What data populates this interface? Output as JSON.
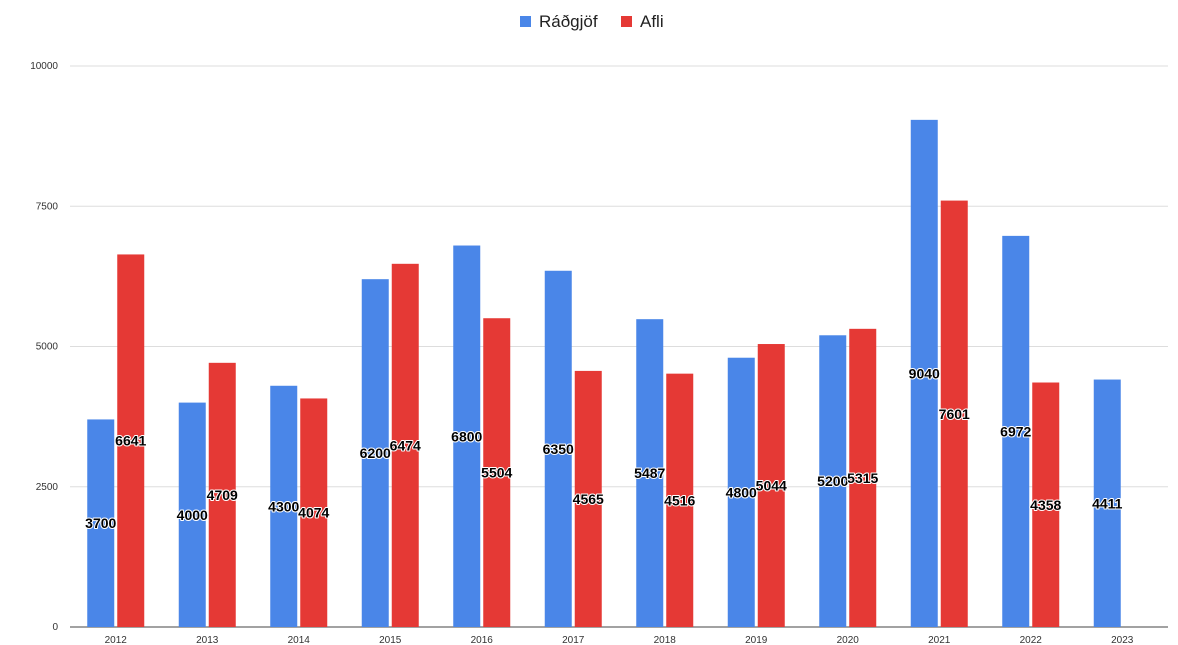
{
  "chart_data": {
    "type": "bar",
    "categories": [
      "2012",
      "2013",
      "2014",
      "2015",
      "2016",
      "2017",
      "2018",
      "2019",
      "2020",
      "2021",
      "2022",
      "2023"
    ],
    "series": [
      {
        "name": "Ráðgjöf",
        "color": "#4a86e8",
        "values": [
          3700,
          4000,
          4300,
          6200,
          6800,
          6350,
          5487,
          4800,
          5200,
          9040,
          6972,
          4411
        ],
        "labels": [
          "3700",
          "4000",
          "4300",
          "6200",
          "6800",
          "6350",
          "5487",
          "4800",
          "5200",
          "9040",
          "6972",
          "4411"
        ]
      },
      {
        "name": "Afli",
        "color": "#e53935",
        "values": [
          6641,
          4709,
          4074,
          6474,
          5504,
          4565,
          4516,
          5044,
          5315,
          7601,
          4358,
          null
        ],
        "labels": [
          "6641",
          "4709",
          "4074",
          "6474",
          "5504",
          "4565",
          "4516",
          "5044",
          "5315",
          "7601",
          "4358",
          null
        ]
      }
    ],
    "ylim": [
      0,
      10000
    ],
    "yticks": [
      "0",
      "2500",
      "5000",
      "7500",
      "10000"
    ],
    "legend_position": "top-center",
    "grid": true,
    "title": "",
    "xlabel": "",
    "ylabel": ""
  }
}
